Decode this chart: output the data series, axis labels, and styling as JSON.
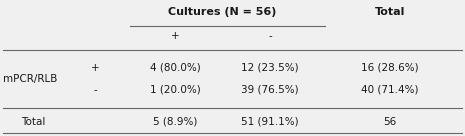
{
  "title_cultures": "Cultures (N = 56)",
  "title_total": "Total",
  "col_plus": "+",
  "col_minus": "-",
  "row_label_mpcr": "mPCR/RLB",
  "row_label_plus": "+",
  "row_label_minus": "-",
  "row_label_total": "Total",
  "cell_pp": "4 (80.0%)",
  "cell_pm": "12 (23.5%)",
  "cell_pt": "16 (28.6%)",
  "cell_mp": "1 (20.0%)",
  "cell_mm": "39 (76.5%)",
  "cell_mt": "40 (71.4%)",
  "cell_tp": "5 (8.9%)",
  "cell_tm": "51 (91.1%)",
  "cell_tt": "56",
  "bg_color": "#f0f0f0",
  "text_color": "#1a1a1a",
  "line_color": "#666666",
  "font_size": 7.5,
  "bold_font_size": 8.0
}
